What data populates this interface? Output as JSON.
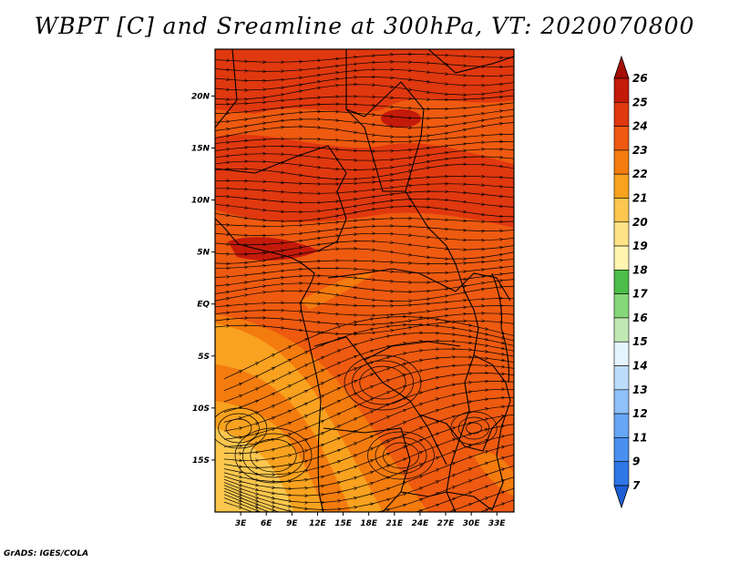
{
  "title": "WBPT [C] and Sreamline at 300hPa, VT: 2020070800",
  "credit": "GrADS: IGES/COLA",
  "map": {
    "lon_labels": [
      "3E",
      "6E",
      "9E",
      "12E",
      "15E",
      "18E",
      "21E",
      "24E",
      "27E",
      "30E",
      "33E"
    ],
    "lat_labels": [
      "20N",
      "15N",
      "10N",
      "5N",
      "EQ",
      "5S",
      "10S",
      "15S"
    ],
    "lon_range": [
      0,
      35
    ],
    "lat_range": [
      -20,
      24.5
    ],
    "lon_ticks": [
      3,
      6,
      9,
      12,
      15,
      18,
      21,
      24,
      27,
      30,
      33
    ],
    "lat_ticks": [
      20,
      15,
      10,
      5,
      0,
      -5,
      -10,
      -15
    ]
  },
  "colorbar": {
    "labels": [
      "7",
      "9",
      "11",
      "12",
      "13",
      "14",
      "15",
      "16",
      "17",
      "18",
      "19",
      "20",
      "21",
      "22",
      "23",
      "24",
      "25",
      "26"
    ],
    "colors": [
      "#1f5fd6",
      "#2f76e6",
      "#4a8ff0",
      "#66a6f5",
      "#8fc0f8",
      "#bcdcfb",
      "#e5f5ff",
      "#bfe8b3",
      "#86d77a",
      "#4cbd48",
      "#fff4b0",
      "#fde385",
      "#fbc74e",
      "#f8a21f",
      "#f47b0e",
      "#ee5a10",
      "#e0380f",
      "#c41a0a",
      "#a50f05"
    ]
  }
}
